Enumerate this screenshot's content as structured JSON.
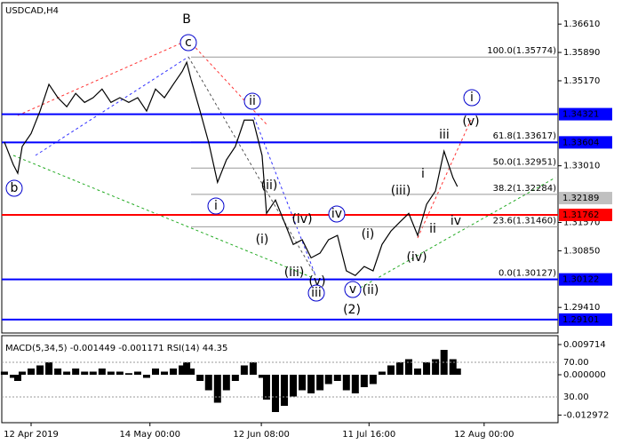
{
  "chart_data": [
    {
      "type": "line",
      "title": "USDCAD,H4",
      "x": [
        -7.2,
        -4.8,
        -3.6,
        -2.4,
        0,
        2.4,
        4.8,
        7.2,
        9.6,
        12,
        14.4,
        16.7,
        19.1,
        21.5,
        23.9,
        26.3,
        28.7,
        31.1,
        33.5,
        35.9,
        38.3,
        40.7,
        41.9,
        43.1,
        45.5,
        47.8,
        50.2,
        52.6,
        55,
        57.4,
        59.8,
        62.2,
        63.4,
        65.8,
        68.2,
        70.6,
        73,
        75.4,
        77.8,
        80.1,
        82.5,
        84.9,
        87.3,
        89.7,
        92.1,
        94.5,
        96.9,
        99.3,
        101.7,
        104.1,
        106.5,
        108.9,
        111.2,
        113.6,
        114.8
      ],
      "series": [
        {
          "name": "USDCAD",
          "color": "#000000",
          "values": [
            1.3361,
            1.3304,
            1.3282,
            1.335,
            1.3383,
            1.344,
            1.3508,
            1.3474,
            1.3451,
            1.3485,
            1.3462,
            1.3474,
            1.3496,
            1.3462,
            1.3474,
            1.3462,
            1.3474,
            1.344,
            1.3496,
            1.3474,
            1.3508,
            1.3541,
            1.3564,
            1.3519,
            1.344,
            1.3361,
            1.3259,
            1.3316,
            1.335,
            1.3417,
            1.3417,
            1.3327,
            1.318,
            1.3214,
            1.3158,
            1.3101,
            1.3113,
            1.3067,
            1.3079,
            1.3113,
            1.3124,
            1.3034,
            1.3022,
            1.3045,
            1.3034,
            1.3101,
            1.3135,
            1.3158,
            1.318,
            1.3124,
            1.3203,
            1.3237,
            1.3338,
            1.3271,
            1.3248
          ]
        }
      ],
      "xlim": [
        -7.9,
        141.9
      ],
      "ylim": [
        1.2876,
        1.3711
      ],
      "xticks": [
        {
          "value": 0,
          "label": "12 Apr 2019"
        },
        {
          "value": 32,
          "label": "14 May 00:00"
        },
        {
          "value": 62,
          "label": "12 Jun 08:00"
        },
        {
          "value": 91,
          "label": "11 Jul 16:00"
        },
        {
          "value": 122,
          "label": "12 Aug 00:00"
        }
      ],
      "yticks": [
        {
          "value": 1.3661,
          "label": "1.36610"
        },
        {
          "value": 1.3589,
          "label": "1.35890"
        },
        {
          "value": 1.3517,
          "label": "1.35170"
        },
        {
          "value": 1.3301,
          "label": "1.33010"
        },
        {
          "value": 1.3157,
          "label": "1.31570"
        },
        {
          "value": 1.3085,
          "label": "1.30850"
        },
        {
          "value": 1.2941,
          "label": "1.29410"
        }
      ],
      "levels": [
        {
          "value": 1.34321,
          "color": "#0000ff"
        },
        {
          "value": 1.33604,
          "color": "#0000ff"
        },
        {
          "value": 1.32189,
          "color": "#c0c0c0"
        },
        {
          "value": 1.31762,
          "color": "#ff0000"
        },
        {
          "value": 1.30122,
          "color": "#0000ff"
        },
        {
          "value": 1.29101,
          "color": "#0000ff"
        }
      ],
      "fibs": [
        {
          "value": 1.35774,
          "label": "100.0(1.35774)"
        },
        {
          "value": 1.33617,
          "label": "61.8(1.33617)"
        },
        {
          "value": 1.32951,
          "label": "50.0(1.32951)"
        },
        {
          "value": 1.32284,
          "label": "38.2(1.32284)"
        },
        {
          "value": 1.3146,
          "label": "23.6(1.31460)"
        },
        {
          "value": 1.30127,
          "label": "0.0(1.30127)"
        }
      ],
      "annotations": [
        {
          "text": "B",
          "color": "#cc2222"
        },
        {
          "text": "c",
          "color": "#0000cc",
          "style": "circle"
        },
        {
          "text": "ii",
          "color": "#0000cc",
          "style": "circle"
        },
        {
          "text": "i",
          "color": "#0000cc",
          "style": "circle"
        },
        {
          "text": "b",
          "color": "#0000cc",
          "style": "circle"
        },
        {
          "text": "i",
          "color": "#0000cc",
          "style": "circle"
        },
        {
          "text": "(ii)",
          "color": "#dd0000"
        },
        {
          "text": "(i)",
          "color": "#dd0000"
        },
        {
          "text": "(iv)",
          "color": "#dd0000"
        },
        {
          "text": "iv",
          "color": "#0000cc",
          "style": "circle"
        },
        {
          "text": "(iii)",
          "color": "#dd0000"
        },
        {
          "text": "(v)",
          "color": "#dd0000"
        },
        {
          "text": "iii",
          "color": "#0000cc",
          "style": "circle"
        },
        {
          "text": "v",
          "color": "#0000cc",
          "style": "circle"
        },
        {
          "text": "(2)",
          "color": "#008800"
        },
        {
          "text": "(i)",
          "color": "#dd0000"
        },
        {
          "text": "(ii)",
          "color": "#dd0000"
        },
        {
          "text": "(iii)",
          "color": "#dd0000"
        },
        {
          "text": "(iv)",
          "color": "#dd0000"
        },
        {
          "text": "i",
          "color": "#888888"
        },
        {
          "text": "iii",
          "color": "#888888"
        },
        {
          "text": "ii",
          "color": "#888888"
        },
        {
          "text": "iv",
          "color": "#888888"
        },
        {
          "text": "(v)",
          "color": "#dd0000"
        }
      ]
    },
    {
      "type": "bar",
      "title": "MACD(5,34,5) -0.001449 -0.001171 RSI(14) 44.35",
      "color": "#000000",
      "values": [
        0.001,
        -0.001,
        -0.002,
        0.001,
        0.002,
        0.003,
        0.004,
        0.002,
        0.001,
        0.002,
        0.001,
        0.001,
        0.002,
        0.001,
        0.001,
        0.0005,
        0.001,
        -0.001,
        0.002,
        0.001,
        0.002,
        0.003,
        0.004,
        0.002,
        -0.002,
        -0.005,
        -0.009,
        -0.005,
        -0.002,
        0.003,
        0.004,
        -0.001,
        -0.008,
        -0.012,
        -0.01,
        -0.007,
        -0.005,
        -0.006,
        -0.005,
        -0.003,
        -0.002,
        -0.005,
        -0.006,
        -0.004,
        -0.003,
        0.001,
        0.003,
        0.004,
        0.005,
        0.002,
        0.004,
        0.005,
        0.008,
        0.005,
        0.002
      ],
      "ylim": [
        -0.01514,
        0.012
      ],
      "y2lim": [
        1.3,
        98.7
      ],
      "yticks": [
        {
          "value": 0.009714,
          "label": "0.009714"
        },
        {
          "value": 0,
          "label": "0.000000"
        },
        {
          "value": -0.012972,
          "label": "-0.012972"
        }
      ],
      "y2ticks": [
        {
          "value": 70,
          "label": "70.00"
        },
        {
          "value": 30,
          "label": "30.00"
        }
      ]
    }
  ]
}
